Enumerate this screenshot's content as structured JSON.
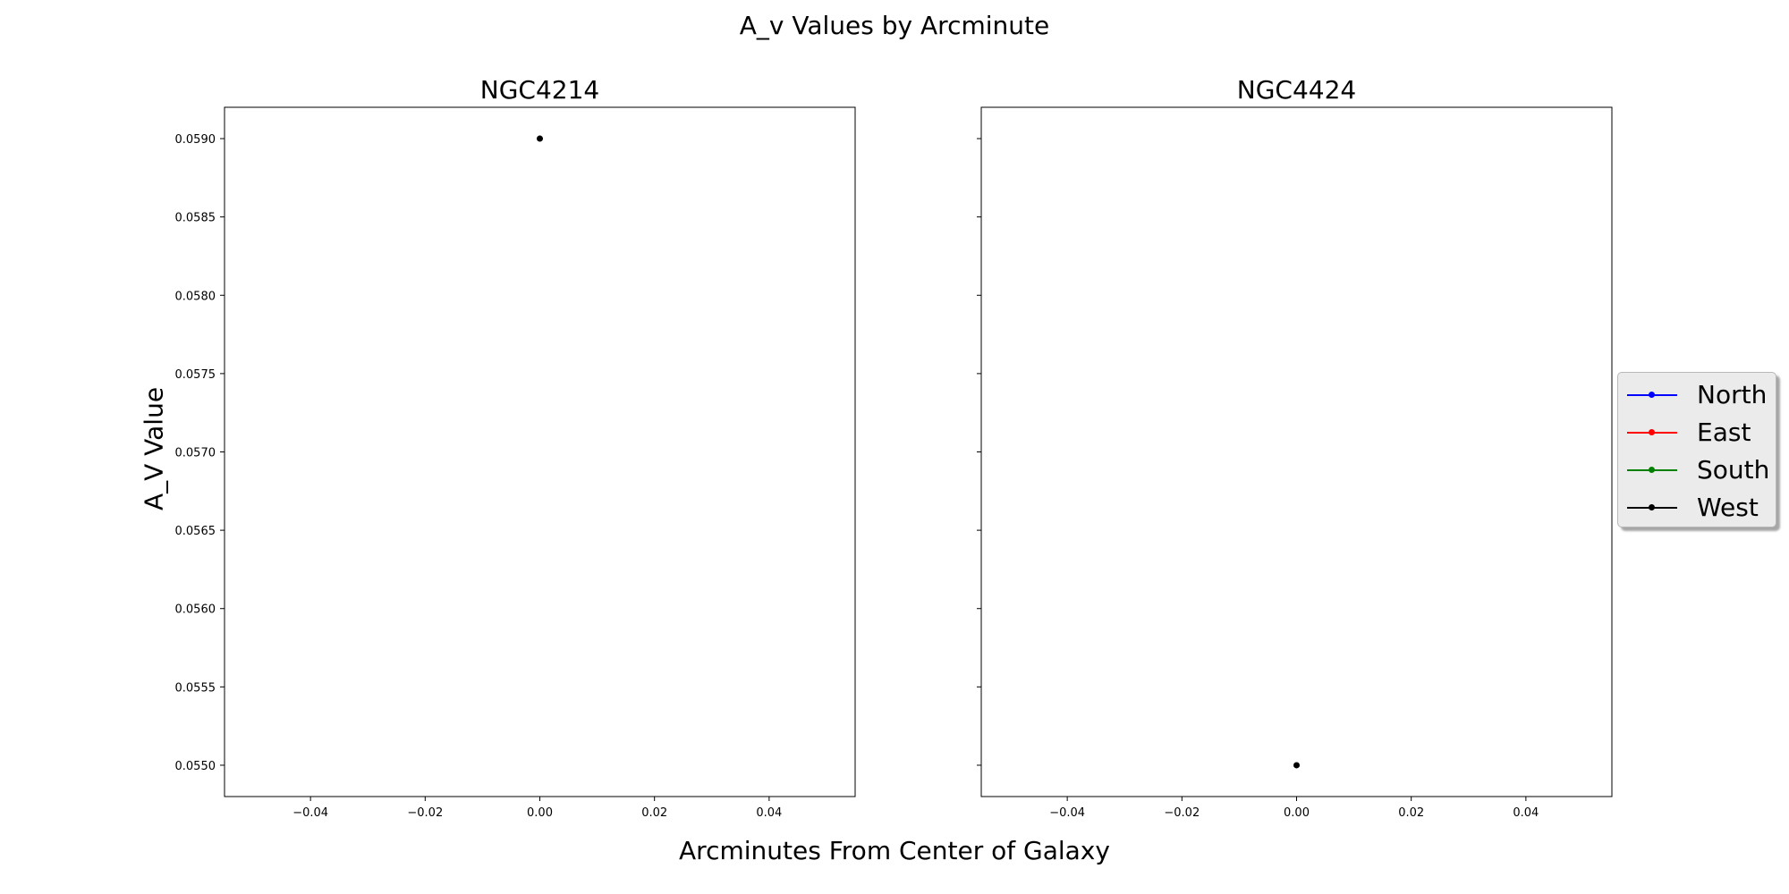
{
  "figure": {
    "suptitle": "A_v Values by Arcminute",
    "xlabel": "Arcminutes From Center of Galaxy",
    "ylabel": "A_V Value"
  },
  "chart_data": [
    {
      "type": "line",
      "title": "NGC4214",
      "xlim": [
        -0.055,
        0.055
      ],
      "ylim": [
        0.0548,
        0.0592
      ],
      "xticks": [
        -0.04,
        -0.02,
        0.0,
        0.02,
        0.04
      ],
      "xtick_labels": [
        "−0.04",
        "−0.02",
        "0.00",
        "0.02",
        "0.04"
      ],
      "yticks": [
        0.055,
        0.0555,
        0.056,
        0.0565,
        0.057,
        0.0575,
        0.058,
        0.0585,
        0.059
      ],
      "ytick_labels": [
        "0.0550",
        "0.0555",
        "0.0560",
        "0.0565",
        "0.0570",
        "0.0575",
        "0.0580",
        "0.0585",
        "0.0590"
      ],
      "show_ytick_labels": true,
      "grid": false,
      "series": [
        {
          "name": "North",
          "color": "#0000ff",
          "x": [],
          "y": []
        },
        {
          "name": "East",
          "color": "#ff0000",
          "x": [],
          "y": []
        },
        {
          "name": "South",
          "color": "#008000",
          "x": [],
          "y": []
        },
        {
          "name": "West",
          "color": "#000000",
          "x": [
            0.0
          ],
          "y": [
            0.059
          ]
        }
      ]
    },
    {
      "type": "line",
      "title": "NGC4424",
      "xlim": [
        -0.055,
        0.055
      ],
      "ylim": [
        0.0548,
        0.0592
      ],
      "xticks": [
        -0.04,
        -0.02,
        0.0,
        0.02,
        0.04
      ],
      "xtick_labels": [
        "−0.04",
        "−0.02",
        "0.00",
        "0.02",
        "0.04"
      ],
      "yticks": [
        0.055,
        0.0555,
        0.056,
        0.0565,
        0.057,
        0.0575,
        0.058,
        0.0585,
        0.059
      ],
      "ytick_labels": [],
      "show_ytick_labels": false,
      "grid": false,
      "series": [
        {
          "name": "North",
          "color": "#0000ff",
          "x": [],
          "y": []
        },
        {
          "name": "East",
          "color": "#ff0000",
          "x": [],
          "y": []
        },
        {
          "name": "South",
          "color": "#008000",
          "x": [],
          "y": []
        },
        {
          "name": "West",
          "color": "#000000",
          "x": [
            0.0
          ],
          "y": [
            0.055
          ]
        }
      ]
    }
  ],
  "legend": {
    "placement": "right",
    "entries": [
      {
        "label": "North",
        "color": "#0000ff"
      },
      {
        "label": "East",
        "color": "#ff0000"
      },
      {
        "label": "South",
        "color": "#008000"
      },
      {
        "label": "West",
        "color": "#000000"
      }
    ]
  }
}
